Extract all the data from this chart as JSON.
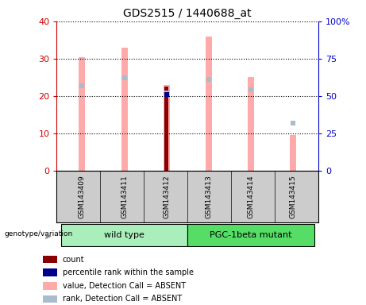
{
  "title": "GDS2515 / 1440688_at",
  "samples": [
    "GSM143409",
    "GSM143411",
    "GSM143412",
    "GSM143413",
    "GSM143414",
    "GSM143415"
  ],
  "pink_bar_values": [
    30.5,
    33.0,
    23.0,
    36.0,
    25.0,
    9.5
  ],
  "light_blue_rank_pct": [
    57.0,
    62.0,
    52.0,
    61.0,
    54.0,
    32.0
  ],
  "red_bar_sample": 2,
  "red_bar_value": 22.5,
  "blue_square_sample": 2,
  "blue_square_pct": 51.0,
  "left_ylim": [
    0,
    40
  ],
  "right_ylim": [
    0,
    100
  ],
  "left_yticks": [
    0,
    10,
    20,
    30,
    40
  ],
  "right_yticks": [
    0,
    25,
    50,
    75,
    100
  ],
  "right_yticklabels": [
    "0",
    "25",
    "50",
    "75",
    "100%"
  ],
  "left_tick_color": "#cc0000",
  "right_tick_color": "#0000cc",
  "wild_type_label": "wild type",
  "mutant_label": "PGC-1beta mutant",
  "wild_type_color": "#aaeebb",
  "mutant_color": "#55dd66",
  "genotype_label": "genotype/variation",
  "legend_items": [
    {
      "color": "#880000",
      "label": "count"
    },
    {
      "color": "#000088",
      "label": "percentile rank within the sample"
    },
    {
      "color": "#ffaaaa",
      "label": "value, Detection Call = ABSENT"
    },
    {
      "color": "#aabbcc",
      "label": "rank, Detection Call = ABSENT"
    }
  ],
  "pink_color": "#ffaaaa",
  "light_blue_color": "#aabbcc",
  "red_color": "#880000",
  "blue_color": "#000088",
  "bar_width": 0.15,
  "background_gray": "#cccccc",
  "fig_bg": "#ffffff"
}
